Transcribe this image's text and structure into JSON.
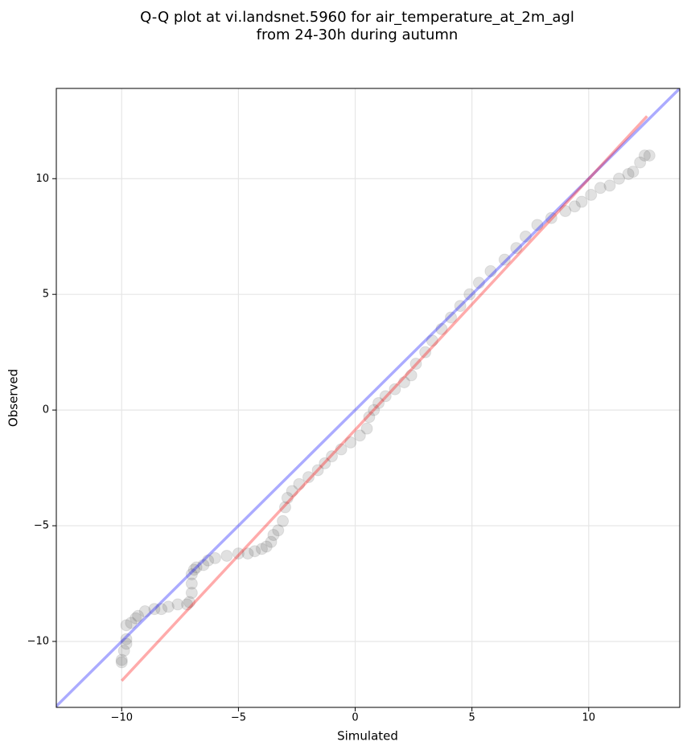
{
  "chart_data": {
    "type": "scatter",
    "title": [
      "Q-Q plot at vi.landsnet.5960 for air_temperature_at_2m_agl",
      "from 24-30h during autumn"
    ],
    "xlabel": "Simulated",
    "ylabel": "Observed",
    "xlim": [
      -12.8,
      13.9
    ],
    "ylim": [
      -12.85,
      13.9
    ],
    "xticks": [
      {
        "value": -10,
        "label": "−10"
      },
      {
        "value": -5,
        "label": "−5"
      },
      0,
      5,
      10
    ],
    "yticks": [
      {
        "value": -10,
        "label": "−10"
      },
      {
        "value": -5,
        "label": "−5"
      },
      0,
      5,
      10
    ],
    "grid": true,
    "color": "#333333",
    "x": [
      -10.0,
      -10.0,
      -9.9,
      -9.8,
      -9.8,
      -9.8,
      -9.6,
      -9.4,
      -9.3,
      -9.0,
      -8.6,
      -8.3,
      -8.0,
      -7.6,
      -7.2,
      -7.1,
      -7.0,
      -7.0,
      -7.0,
      -6.9,
      -6.8,
      -6.5,
      -6.3,
      -6.0,
      -5.5,
      -5.0,
      -4.6,
      -4.3,
      -4.0,
      -3.8,
      -3.6,
      -3.5,
      -3.3,
      -3.1,
      -3.0,
      -2.9,
      -2.7,
      -2.4,
      -2.0,
      -1.6,
      -1.3,
      -1.0,
      -0.6,
      -0.2,
      0.2,
      0.5,
      0.6,
      0.8,
      1.0,
      1.3,
      1.7,
      2.1,
      2.4,
      2.6,
      3.0,
      3.3,
      3.7,
      4.1,
      4.5,
      4.9,
      5.3,
      5.8,
      6.4,
      6.9,
      7.3,
      7.8,
      8.4,
      9.0,
      9.4,
      9.7,
      10.1,
      10.5,
      10.9,
      11.3,
      11.7,
      11.9,
      12.2,
      12.4,
      12.6
    ],
    "y": [
      -10.9,
      -10.8,
      -10.4,
      -10.1,
      -9.9,
      -9.3,
      -9.2,
      -9.0,
      -8.9,
      -8.7,
      -8.6,
      -8.6,
      -8.5,
      -8.4,
      -8.4,
      -8.3,
      -7.9,
      -7.5,
      -7.1,
      -6.9,
      -6.8,
      -6.7,
      -6.5,
      -6.4,
      -6.3,
      -6.2,
      -6.2,
      -6.1,
      -6.0,
      -5.9,
      -5.7,
      -5.4,
      -5.2,
      -4.8,
      -4.2,
      -3.8,
      -3.5,
      -3.2,
      -2.9,
      -2.6,
      -2.3,
      -2.0,
      -1.7,
      -1.4,
      -1.1,
      -0.8,
      -0.3,
      0.0,
      0.3,
      0.6,
      0.9,
      1.2,
      1.5,
      2.0,
      2.5,
      3.0,
      3.5,
      4.0,
      4.5,
      5.0,
      5.5,
      6.0,
      6.5,
      7.0,
      7.5,
      8.0,
      8.3,
      8.6,
      8.8,
      9.0,
      9.3,
      9.6,
      9.7,
      10.0,
      10.2,
      10.3,
      10.7,
      11.0,
      11.0
    ],
    "lines": [
      {
        "color": "#0000ff",
        "x": [
          -12.8,
          13.9
        ],
        "y": [
          -12.8,
          13.9
        ]
      },
      {
        "color": "#ff0000",
        "x": [
          -10.0,
          12.5
        ],
        "y": [
          -11.7,
          12.7
        ]
      }
    ]
  }
}
